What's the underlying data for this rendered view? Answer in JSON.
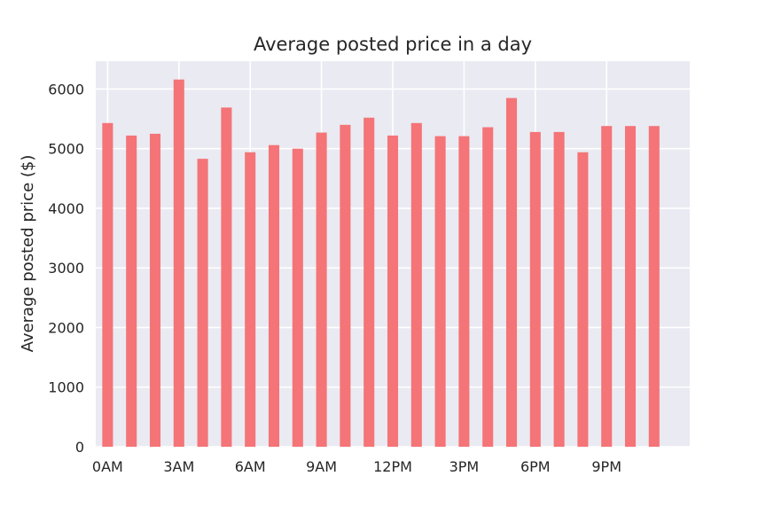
{
  "chart_data": {
    "type": "bar",
    "title": "Average posted price in a day",
    "xlabel": "",
    "ylabel": "Average posted price ($)",
    "categories": [
      0,
      1,
      2,
      3,
      4,
      5,
      6,
      7,
      8,
      9,
      10,
      11,
      12,
      13,
      14,
      15,
      16,
      17,
      18,
      19,
      20,
      21,
      22,
      23
    ],
    "values": [
      5430,
      5220,
      5250,
      6160,
      4830,
      5690,
      4940,
      5060,
      5000,
      5270,
      5400,
      5520,
      5220,
      5430,
      5210,
      5210,
      5360,
      5850,
      5280,
      5280,
      4940,
      5380,
      5380,
      5380
    ],
    "xticks": [
      {
        "pos": 0,
        "label": "0AM"
      },
      {
        "pos": 3,
        "label": "3AM"
      },
      {
        "pos": 6,
        "label": "6AM"
      },
      {
        "pos": 9,
        "label": "9AM"
      },
      {
        "pos": 12,
        "label": "12PM"
      },
      {
        "pos": 15,
        "label": "3PM"
      },
      {
        "pos": 18,
        "label": "6PM"
      },
      {
        "pos": 21,
        "label": "9PM"
      }
    ],
    "yticks": [
      0,
      1000,
      2000,
      3000,
      4000,
      5000,
      6000
    ],
    "xlim": [
      -0.5,
      24.5
    ],
    "ylim": [
      0,
      6468
    ],
    "grid": true,
    "legend": "none",
    "colors": {
      "bar": "#f47477",
      "background": "#eaeaf2",
      "grid": "#ffffff",
      "text": "#262626"
    }
  }
}
